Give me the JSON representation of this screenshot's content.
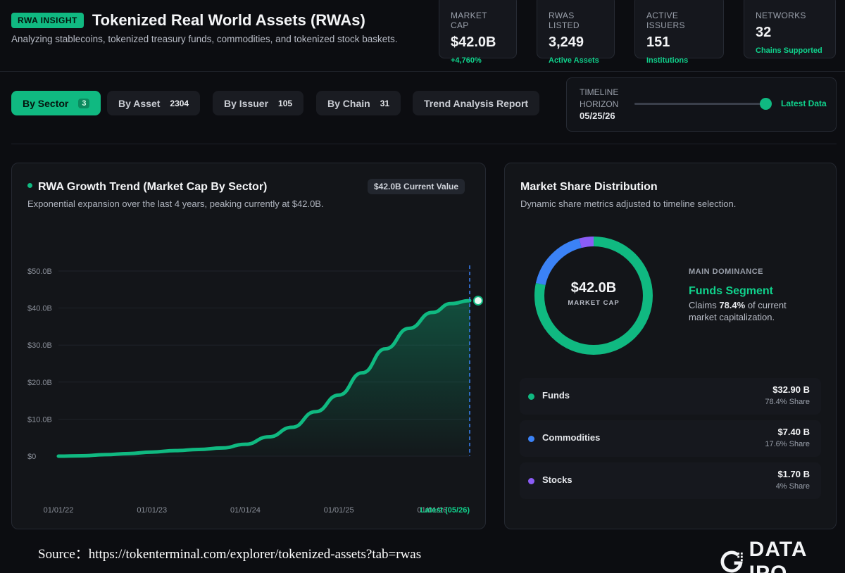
{
  "header": {
    "badge": "RWA INSIGHT",
    "title": "Tokenized Real World Assets (RWAs)",
    "subtitle": "Analyzing stablecoins, tokenized treasury funds, commodities, and tokenized stock baskets."
  },
  "stats": [
    {
      "label": "MARKET CAP",
      "value": "$42.0B",
      "sub": "+4,760%"
    },
    {
      "label": "RWAS LISTED",
      "value": "3,249",
      "sub": "Active Assets"
    },
    {
      "label": "ACTIVE ISSUERS",
      "value": "151",
      "sub": "Institutions"
    },
    {
      "label": "NETWORKS",
      "value": "32",
      "sub": "Chains Supported"
    }
  ],
  "tabs": [
    {
      "label": "By Sector",
      "count": "3"
    },
    {
      "label": "By Asset",
      "count": "2304"
    },
    {
      "label": "By Issuer",
      "count": "105"
    },
    {
      "label": "By Chain",
      "count": "31"
    },
    {
      "label": "Trend Analysis Report",
      "count": ""
    }
  ],
  "timeline": {
    "label": "TIMELINE HORIZON",
    "date": "05/25/26",
    "latest_label": "Latest Data",
    "slider_fraction": 1.0
  },
  "growth_panel": {
    "title": "RWA Growth Trend (Market Cap By Sector)",
    "current_value": "$42.0B Current Value",
    "description": "Exponential expansion over the last 4 years, peaking currently at $42.0B."
  },
  "chart_data": {
    "type": "area",
    "title": "RWA Growth Trend (Market Cap By Sector)",
    "x_ticks": [
      "01/01/22",
      "01/01/23",
      "01/01/24",
      "01/01/25",
      "01/01/26",
      "Latest (05/26)"
    ],
    "y_ticks": [
      "$0",
      "$10.0B",
      "$20.0B",
      "$30.0B",
      "$40.0B",
      "$50.0B"
    ],
    "ylim": [
      0,
      50
    ],
    "y_unit": "B",
    "series": [
      {
        "x": [
          2022.0,
          2022.25,
          2022.5,
          2022.75,
          2023.0,
          2023.25,
          2023.5,
          2023.75,
          2024.0,
          2024.25,
          2024.5,
          2024.75,
          2025.0,
          2025.25,
          2025.5,
          2025.75,
          2026.0,
          2026.2,
          2026.4
        ],
        "values": [
          0.0,
          0.1,
          0.4,
          0.7,
          1.1,
          1.5,
          1.8,
          2.2,
          3.2,
          5.2,
          7.8,
          12.0,
          16.5,
          22.5,
          29.0,
          34.5,
          38.8,
          41.2,
          42.0
        ]
      }
    ],
    "grid": true,
    "color": "#10b981"
  },
  "share_panel": {
    "title": "Market Share Distribution",
    "description": "Dynamic share metrics adjusted to timeline selection.",
    "donut_value": "$42.0B",
    "donut_caption": "MARKET CAP",
    "dominance_label": "MAIN DOMINANCE",
    "dominance_segment": "Funds Segment",
    "dominance_prefix": "Claims ",
    "dominance_pct": "78.4%",
    "dominance_suffix": " of current market capitalization."
  },
  "shares": [
    {
      "name": "Funds",
      "amount": "$32.90 B",
      "share": "78.4% Share",
      "fraction": 0.784,
      "color": "#10b981"
    },
    {
      "name": "Commodities",
      "amount": "$7.40 B",
      "share": "17.6% Share",
      "fraction": 0.176,
      "color": "#3b82f6"
    },
    {
      "name": "Stocks",
      "amount": "$1.70 B",
      "share": "4% Share",
      "fraction": 0.04,
      "color": "#8b5cf6"
    }
  ],
  "footer": {
    "source": "Source：https://tokenterminal.com/explorer/tokenized-assets?tab=rwas",
    "brand": "DATA IPO"
  }
}
